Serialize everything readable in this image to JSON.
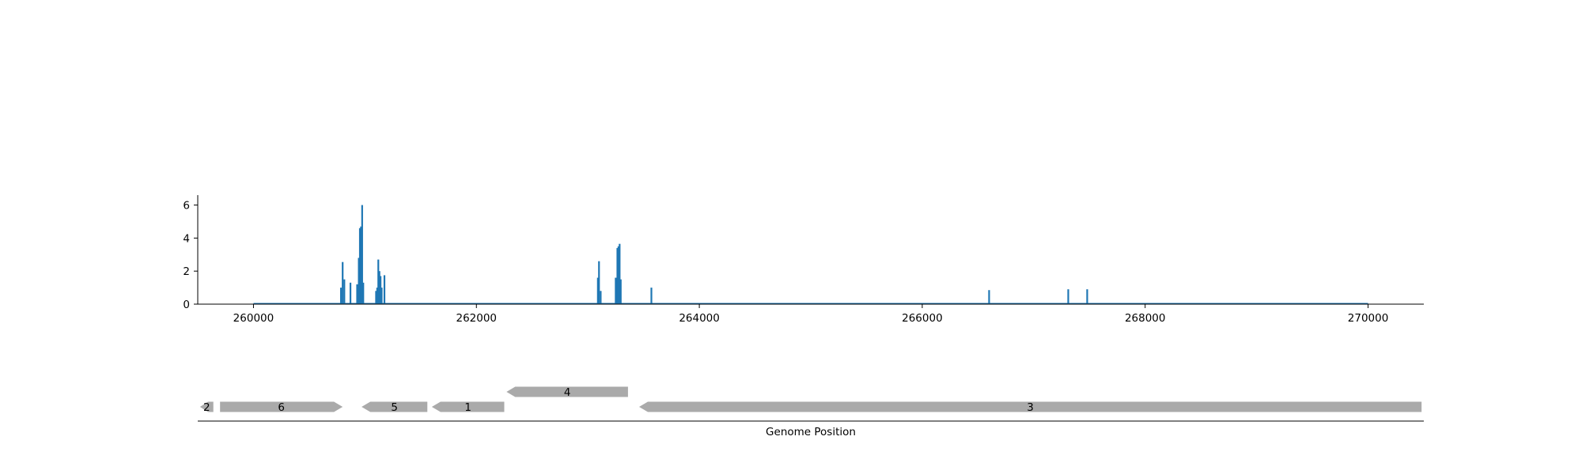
{
  "chart_data": [
    {
      "type": "bar",
      "title": "",
      "xlabel": "",
      "ylabel": "",
      "xlim": [
        259500,
        270500
      ],
      "ylim": [
        0,
        6.6
      ],
      "xticks": [
        260000,
        262000,
        264000,
        266000,
        268000,
        270000
      ],
      "yticks": [
        0,
        2,
        4,
        6
      ],
      "bar_color": "#1f77b4",
      "baseline_range": [
        260000,
        270000
      ],
      "grid": false,
      "legend": "none",
      "points": [
        {
          "x": 260785,
          "y": 1.0
        },
        {
          "x": 260800,
          "y": 2.55
        },
        {
          "x": 260815,
          "y": 1.5
        },
        {
          "x": 260870,
          "y": 1.3
        },
        {
          "x": 260930,
          "y": 1.2
        },
        {
          "x": 260945,
          "y": 2.8
        },
        {
          "x": 260955,
          "y": 4.6
        },
        {
          "x": 260965,
          "y": 4.7
        },
        {
          "x": 260975,
          "y": 6.0
        },
        {
          "x": 260985,
          "y": 1.3
        },
        {
          "x": 261100,
          "y": 0.8
        },
        {
          "x": 261110,
          "y": 1.0
        },
        {
          "x": 261120,
          "y": 2.7
        },
        {
          "x": 261130,
          "y": 2.0
        },
        {
          "x": 261140,
          "y": 1.7
        },
        {
          "x": 261150,
          "y": 1.0
        },
        {
          "x": 261175,
          "y": 1.75
        },
        {
          "x": 263090,
          "y": 1.6
        },
        {
          "x": 263100,
          "y": 2.6
        },
        {
          "x": 263115,
          "y": 0.8
        },
        {
          "x": 263250,
          "y": 1.6
        },
        {
          "x": 263265,
          "y": 3.4
        },
        {
          "x": 263275,
          "y": 3.5
        },
        {
          "x": 263285,
          "y": 3.65
        },
        {
          "x": 263295,
          "y": 1.5
        },
        {
          "x": 263570,
          "y": 1.0
        },
        {
          "x": 266600,
          "y": 0.85
        },
        {
          "x": 267310,
          "y": 0.9
        },
        {
          "x": 267480,
          "y": 0.9
        }
      ]
    },
    {
      "type": "gene_track",
      "xlabel": "Genome Position",
      "xlim": [
        259500,
        270500
      ],
      "gene_color": "#aaaaaa",
      "genes": [
        {
          "label": "2",
          "start": 259520,
          "end": 259640,
          "strand": "-",
          "row": 0
        },
        {
          "label": "6",
          "start": 259700,
          "end": 260800,
          "strand": "+",
          "row": 0
        },
        {
          "label": "5",
          "start": 260970,
          "end": 261560,
          "strand": "-",
          "row": 0
        },
        {
          "label": "1",
          "start": 261600,
          "end": 262250,
          "strand": "-",
          "row": 0
        },
        {
          "label": "4",
          "start": 262270,
          "end": 263360,
          "strand": "-",
          "row": 1
        },
        {
          "label": "3",
          "start": 263460,
          "end": 270480,
          "strand": "-",
          "row": 0
        }
      ]
    }
  ]
}
